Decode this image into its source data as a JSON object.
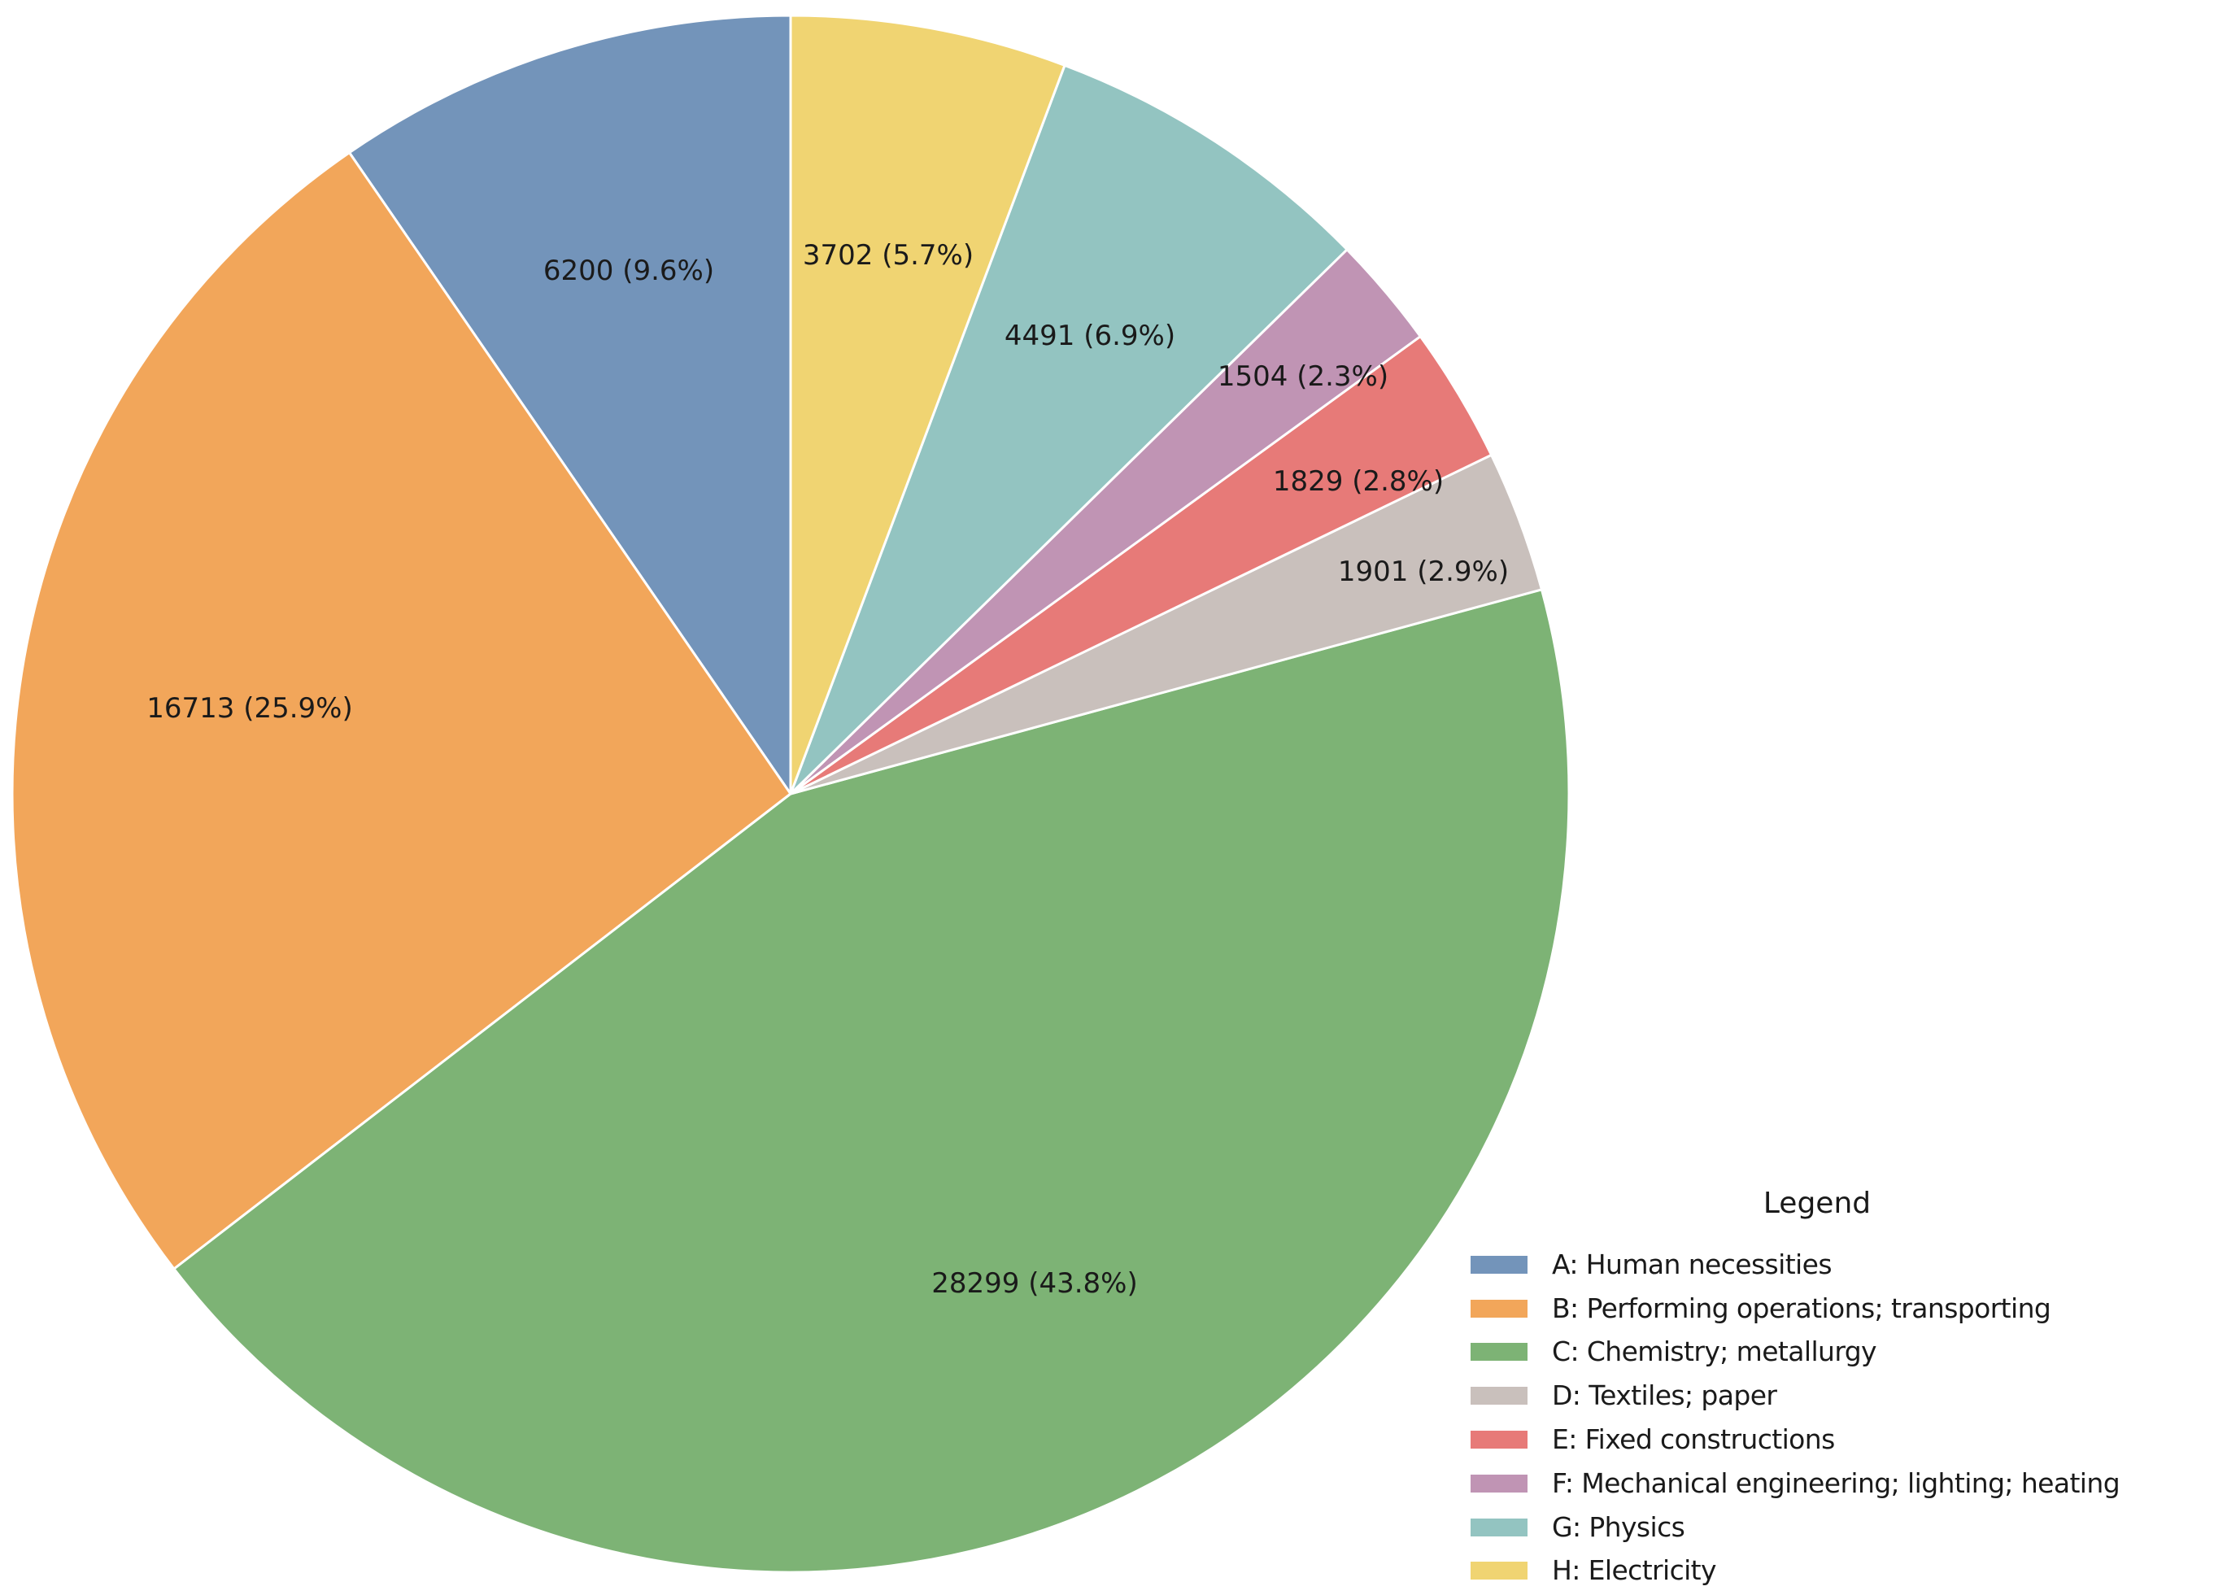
{
  "chart_data": {
    "type": "pie",
    "title": "",
    "start_angle_deg": 90,
    "direction": "counterclockwise",
    "categories": [
      "A: Human necessities",
      "B: Performing operations; transporting",
      "C: Chemistry; metallurgy",
      "D: Textiles; paper",
      "E: Fixed constructions",
      "F: Mechanical engineering; lighting; heating",
      "G: Physics",
      "H: Electricity"
    ],
    "values": [
      6200,
      16713,
      28299,
      1901,
      1829,
      1504,
      4491,
      3702
    ],
    "percentages": [
      9.6,
      25.9,
      43.8,
      2.9,
      2.8,
      2.3,
      6.9,
      5.7
    ],
    "labels": [
      "6200 (9.6%)",
      "16713 (25.9%)",
      "28299 (43.8%)",
      "1901 (2.9%)",
      "1829 (2.8%)",
      "1504 (2.3%)",
      "4491 (6.9%)",
      "3702 (5.7%)"
    ],
    "colors": [
      "#7394BA",
      "#F2A65A",
      "#7DB375",
      "#C9C0BC",
      "#E77A78",
      "#C094B4",
      "#93C4C1",
      "#F0D472"
    ],
    "label_positions": [
      [
        773,
        333
      ],
      [
        307,
        871
      ],
      [
        1272,
        1578
      ],
      [
        1750,
        703
      ],
      [
        1670,
        592
      ],
      [
        1602,
        463
      ],
      [
        1340,
        413
      ],
      [
        1092,
        314
      ]
    ],
    "legend": {
      "title": "Legend",
      "position": "lower right"
    }
  },
  "legend": {
    "title": "Legend",
    "items": [
      {
        "label": "A: Human necessities",
        "color": "#7394BA"
      },
      {
        "label": "B: Performing operations; transporting",
        "color": "#F2A65A"
      },
      {
        "label": "C: Chemistry; metallurgy",
        "color": "#7DB375"
      },
      {
        "label": "D: Textiles; paper",
        "color": "#C9C0BC"
      },
      {
        "label": "E: Fixed constructions",
        "color": "#E77A78"
      },
      {
        "label": "F: Mechanical engineering; lighting; heating",
        "color": "#C094B4"
      },
      {
        "label": "G: Physics",
        "color": "#93C4C1"
      },
      {
        "label": "H: Electricity",
        "color": "#F0D472"
      }
    ]
  }
}
